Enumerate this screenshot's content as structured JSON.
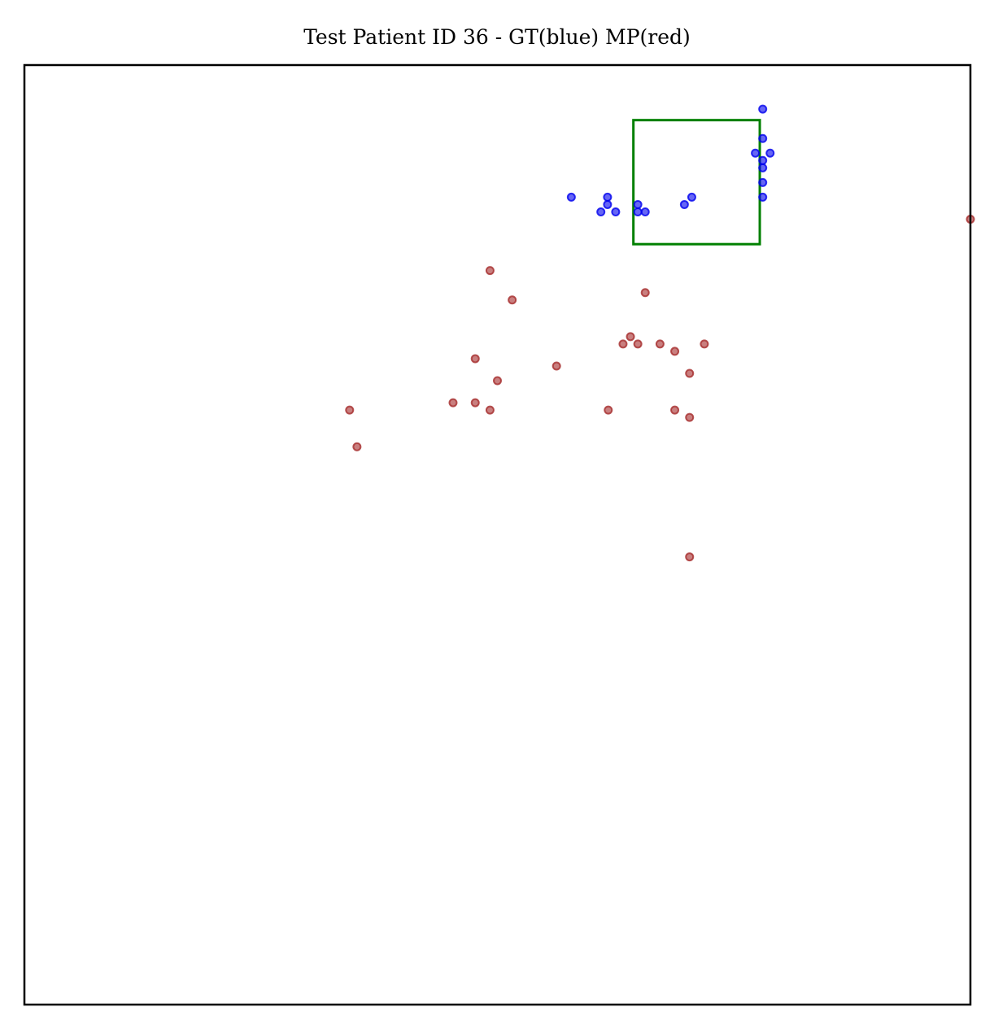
{
  "chart_data": {
    "type": "scatter",
    "title": "Test Patient ID 36 - GT(blue) MP(red)",
    "xlabel": "",
    "ylabel": "",
    "xlim": [
      0,
      128
    ],
    "ylim": [
      128,
      0
    ],
    "axis_ticks": "hidden",
    "grid": false,
    "series": [
      {
        "color": "#0000ee",
        "points": [
          [
            99.9,
            6.0
          ],
          [
            99.9,
            10.0
          ],
          [
            98.9,
            12.0
          ],
          [
            100.9,
            12.0
          ],
          [
            99.9,
            13.0
          ],
          [
            99.9,
            14.0
          ],
          [
            99.9,
            16.0
          ],
          [
            99.9,
            18.0
          ],
          [
            74.0,
            18.0
          ],
          [
            78.9,
            18.0
          ],
          [
            90.3,
            18.0
          ],
          [
            78.9,
            19.0
          ],
          [
            83.0,
            19.0
          ],
          [
            89.3,
            19.0
          ],
          [
            78.0,
            20.0
          ],
          [
            80.0,
            20.0
          ],
          [
            83.0,
            20.0
          ],
          [
            84.0,
            20.0
          ]
        ]
      },
      {
        "color": "#a52a2a",
        "points": [
          [
            128.0,
            21.0
          ],
          [
            63.0,
            28.0
          ],
          [
            66.0,
            32.0
          ],
          [
            84.0,
            31.0
          ],
          [
            82.0,
            37.0
          ],
          [
            81.0,
            38.0
          ],
          [
            83.0,
            38.0
          ],
          [
            86.0,
            38.0
          ],
          [
            88.0,
            39.0
          ],
          [
            92.0,
            38.0
          ],
          [
            61.0,
            40.0
          ],
          [
            72.0,
            41.0
          ],
          [
            64.0,
            43.0
          ],
          [
            90.0,
            42.0
          ],
          [
            58.0,
            46.0
          ],
          [
            61.0,
            46.0
          ],
          [
            63.0,
            47.0
          ],
          [
            44.0,
            47.0
          ],
          [
            79.0,
            47.0
          ],
          [
            88.0,
            47.0
          ],
          [
            90.0,
            48.0
          ],
          [
            45.0,
            52.0
          ],
          [
            90.0,
            67.0
          ]
        ]
      }
    ],
    "box": {
      "color": "#008000",
      "x0": 82.4,
      "y0": 7.5,
      "x1": 99.5,
      "y1": 24.4
    }
  }
}
